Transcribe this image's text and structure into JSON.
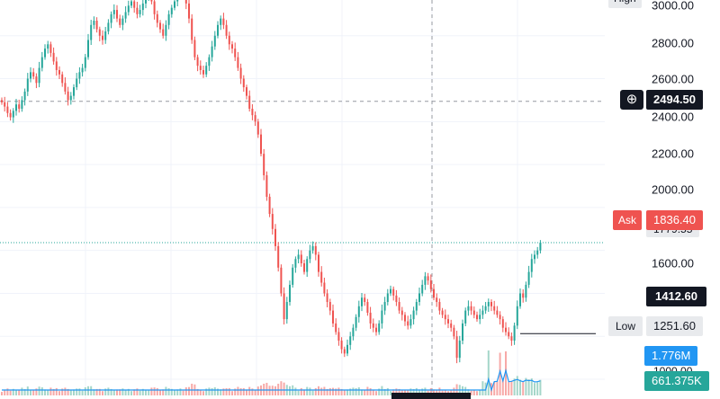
{
  "price_axis": {
    "ticks": [
      "3000.00",
      "2800.00",
      "2600.00",
      "2400.00",
      "2200.00",
      "2000.00",
      "1600.00"
    ],
    "high_label": "High",
    "crosshair_price": "2494.50",
    "ask_label": "Ask",
    "ask_price": "1836.40",
    "ask_partial_below": "1779.55",
    "level_price": "1412.60",
    "low_label": "Low",
    "low_price": "1251.60",
    "vol_value": "1.776M",
    "vol_ma_value": "661.375K",
    "partial_bottom": "1000.00"
  },
  "colors": {
    "up": "#26a69a",
    "down": "#ef5350",
    "vol_up": "#a5d6c9",
    "vol_down": "#f7a9a7",
    "vol_ma": "#2196f3",
    "ask_bg": "#ef5350",
    "vol_bg": "#2196f3",
    "vol_ma_bg": "#26a69a",
    "dark": "#131722"
  },
  "icons": {
    "crosshair": "plus-circle-icon"
  },
  "chart_data": {
    "type": "candlestick",
    "price_axis_range": [
      1150,
      3050
    ],
    "closes": [
      2490,
      2470,
      2440,
      2420,
      2450,
      2480,
      2460,
      2500,
      2540,
      2600,
      2630,
      2610,
      2580,
      2650,
      2700,
      2740,
      2760,
      2720,
      2680,
      2640,
      2620,
      2580,
      2540,
      2500,
      2520,
      2560,
      2600,
      2630,
      2650,
      2700,
      2780,
      2850,
      2870,
      2830,
      2800,
      2780,
      2820,
      2860,
      2900,
      2920,
      2880,
      2850,
      2880,
      2910,
      2940,
      2960,
      2930,
      2900,
      2920,
      2950,
      2980,
      3000,
      2960,
      2900,
      2860,
      2830,
      2800,
      2850,
      2900,
      2930,
      2960,
      2990,
      3020,
      3000,
      2950,
      2880,
      2780,
      2700,
      2660,
      2640,
      2620,
      2660,
      2700,
      2750,
      2800,
      2850,
      2880,
      2850,
      2800,
      2760,
      2740,
      2700,
      2650,
      2600,
      2560,
      2520,
      2460,
      2430,
      2400,
      2340,
      2250,
      2150,
      2050,
      1970,
      1900,
      1820,
      1720,
      1600,
      1480,
      1560,
      1640,
      1720,
      1760,
      1780,
      1740,
      1700,
      1760,
      1800,
      1820,
      1780,
      1700,
      1650,
      1600,
      1560,
      1520,
      1460,
      1420,
      1380,
      1340,
      1320,
      1360,
      1400,
      1440,
      1490,
      1540,
      1580,
      1560,
      1510,
      1460,
      1440,
      1420,
      1460,
      1520,
      1560,
      1600,
      1620,
      1590,
      1560,
      1520,
      1500,
      1470,
      1450,
      1480,
      1520,
      1560,
      1600,
      1640,
      1680,
      1660,
      1620,
      1580,
      1560,
      1520,
      1500,
      1480,
      1460,
      1440,
      1400,
      1300,
      1380,
      1460,
      1520,
      1540,
      1520,
      1500,
      1480,
      1500,
      1520,
      1540,
      1560,
      1540,
      1520,
      1500,
      1480,
      1440,
      1420,
      1400,
      1380,
      1450,
      1540,
      1600,
      1580,
      1640,
      1700,
      1760,
      1780,
      1800,
      1836.4
    ],
    "volume_max": 1776000,
    "volume_shown": 1776000,
    "volume_ma_shown": 661375
  }
}
